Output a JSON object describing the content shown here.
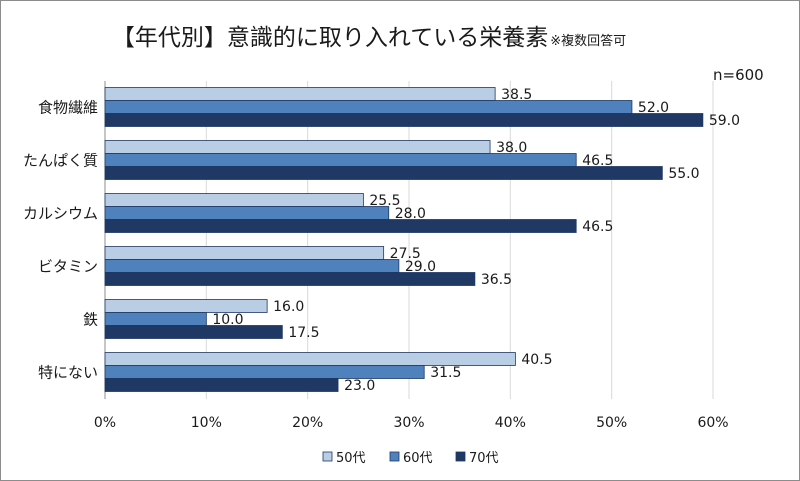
{
  "chart_data": {
    "type": "bar",
    "orientation": "horizontal",
    "title": "【年代別】意識的に取り入れている栄養素",
    "subtitle": "※複数回答可",
    "sample_size": "n=600",
    "categories": [
      "食物繊維",
      "たんぱく質",
      "カルシウム",
      "ビタミン",
      "鉄",
      "特にない"
    ],
    "series": [
      {
        "name": "50代",
        "color": "#b9cde5",
        "values": [
          38.5,
          38.0,
          25.5,
          27.5,
          16.0,
          40.5
        ]
      },
      {
        "name": "60代",
        "color": "#4f81bd",
        "values": [
          52.0,
          46.5,
          28.0,
          29.0,
          10.0,
          31.5
        ]
      },
      {
        "name": "70代",
        "color": "#1f3864",
        "values": [
          59.0,
          55.0,
          46.5,
          36.5,
          17.5,
          23.0
        ]
      }
    ],
    "data_labels": [
      [
        "38.5",
        "38.0",
        "25.5",
        "27.5",
        "16.0",
        "40.5"
      ],
      [
        "52.0",
        "46.5",
        "28.0",
        "29.0",
        "10.0",
        "31.5"
      ],
      [
        "59.0",
        "55.0",
        "46.5",
        "36.5",
        "17.5",
        "23.0"
      ]
    ],
    "xlim": [
      0,
      60
    ],
    "xticks": [
      0,
      10,
      20,
      30,
      40,
      50,
      60
    ],
    "xtick_labels": [
      "0%",
      "10%",
      "20%",
      "30%",
      "40%",
      "50%",
      "60%"
    ],
    "grid": true,
    "legend_position": "bottom",
    "xlabel": "",
    "ylabel": ""
  }
}
